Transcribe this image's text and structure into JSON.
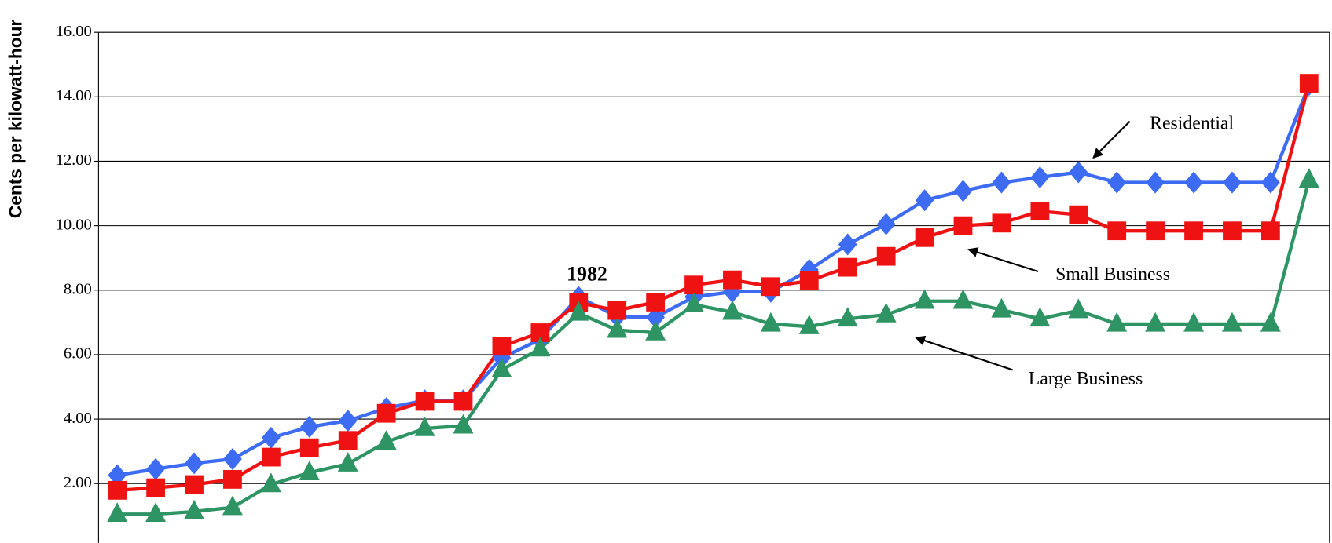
{
  "chart_data": {
    "type": "line",
    "y_label": "Cents per kilowatt-hour",
    "categories": [
      null,
      null,
      null,
      null,
      null,
      null,
      null,
      null,
      null,
      null,
      null,
      null,
      null,
      null,
      null,
      null,
      null,
      null,
      null,
      null,
      null,
      null,
      null,
      null,
      null,
      null,
      null,
      null,
      null,
      null,
      null,
      null
    ],
    "series": [
      {
        "name": "Residential",
        "color": "#3d6cf2",
        "marker": "diamond",
        "values": [
          2.26,
          2.45,
          2.63,
          2.76,
          3.42,
          3.76,
          3.95,
          4.34,
          4.58,
          4.58,
          5.9,
          6.47,
          7.79,
          7.18,
          7.16,
          7.79,
          7.95,
          7.95,
          8.63,
          9.42,
          10.05,
          10.79,
          11.08,
          11.34,
          11.5,
          11.66,
          11.34,
          11.34,
          11.34,
          11.34,
          11.34,
          14.37
        ]
      },
      {
        "name": "Small Business",
        "color": "#ee1212",
        "marker": "square",
        "values": [
          1.79,
          1.87,
          1.97,
          2.13,
          2.82,
          3.11,
          3.34,
          4.18,
          4.55,
          4.55,
          6.26,
          6.68,
          7.61,
          7.37,
          7.63,
          8.16,
          8.32,
          8.11,
          8.29,
          8.71,
          9.05,
          9.63,
          10.0,
          10.08,
          10.45,
          10.34,
          9.84,
          9.84,
          9.84,
          9.84,
          9.84,
          14.42
        ]
      },
      {
        "name": "Large Business",
        "color": "#2e9464",
        "marker": "triangle",
        "values": [
          1.05,
          1.05,
          1.13,
          1.26,
          1.97,
          2.34,
          2.61,
          3.29,
          3.71,
          3.79,
          5.53,
          6.18,
          7.29,
          6.76,
          6.68,
          7.55,
          7.32,
          6.95,
          6.87,
          7.11,
          7.24,
          7.66,
          7.66,
          7.39,
          7.11,
          7.37,
          6.95,
          6.95,
          6.95,
          6.95,
          6.95,
          11.42
        ]
      }
    ],
    "annotations": [
      {
        "text": "1982"
      }
    ],
    "ylim": [
      0.16,
      16
    ],
    "yticks": [
      {
        "value": 2,
        "label": "2.00"
      },
      {
        "value": 4,
        "label": "4.00"
      },
      {
        "value": 6,
        "label": "6.00"
      },
      {
        "value": 8,
        "label": "8.00"
      },
      {
        "value": 10,
        "label": "10.00"
      },
      {
        "value": 12,
        "label": "12.00"
      },
      {
        "value": 14,
        "label": "14.00"
      },
      {
        "value": 16,
        "label": "16.00"
      }
    ],
    "grid": true
  }
}
